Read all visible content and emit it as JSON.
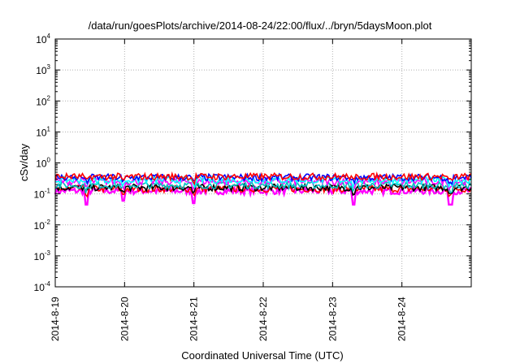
{
  "chart_data": {
    "type": "line",
    "title": "/data/run/goesPlots/archive/2014-08-24/22:00/flux/../bryn/5daysMoon.plot",
    "xlabel": "Coordinated Universal Time (UTC)",
    "ylabel": "cSv/day",
    "y_scale": "log",
    "ylim_exponent": [
      -4,
      4
    ],
    "y_ticks": [
      {
        "base": "10",
        "exp": "4"
      },
      {
        "base": "10",
        "exp": "3"
      },
      {
        "base": "10",
        "exp": "2"
      },
      {
        "base": "10",
        "exp": "1"
      },
      {
        "base": "10",
        "exp": "0"
      },
      {
        "base": "10",
        "exp": "-1"
      },
      {
        "base": "10",
        "exp": "-2"
      },
      {
        "base": "10",
        "exp": "-3"
      },
      {
        "base": "10",
        "exp": "-4"
      }
    ],
    "xlim_days": [
      0,
      6.0
    ],
    "x_ticks": [
      {
        "label": "2014-8-19",
        "day": 0
      },
      {
        "label": "2014-8-20",
        "day": 1
      },
      {
        "label": "2014-8-21",
        "day": 2
      },
      {
        "label": "2014-8-22",
        "day": 3
      },
      {
        "label": "2014-8-23",
        "day": 4
      },
      {
        "label": "2014-8-24",
        "day": 5
      }
    ],
    "grid": true,
    "legend": "none",
    "series": [
      {
        "color": "#ff00ff",
        "level": 0.125,
        "dips": [
          0.045,
          0.06,
          0.05,
          0.045
        ]
      },
      {
        "color": "#ff0000",
        "level": 0.145
      },
      {
        "color": "#000000",
        "level": 0.16
      },
      {
        "color": "#00bfbf",
        "level": 0.19
      },
      {
        "color": "#ff00ff",
        "level": 0.25
      },
      {
        "color": "#00ffff",
        "level": 0.28
      },
      {
        "color": "#0000ff",
        "level": 0.34
      },
      {
        "color": "#ff0000",
        "level": 0.36
      }
    ]
  }
}
